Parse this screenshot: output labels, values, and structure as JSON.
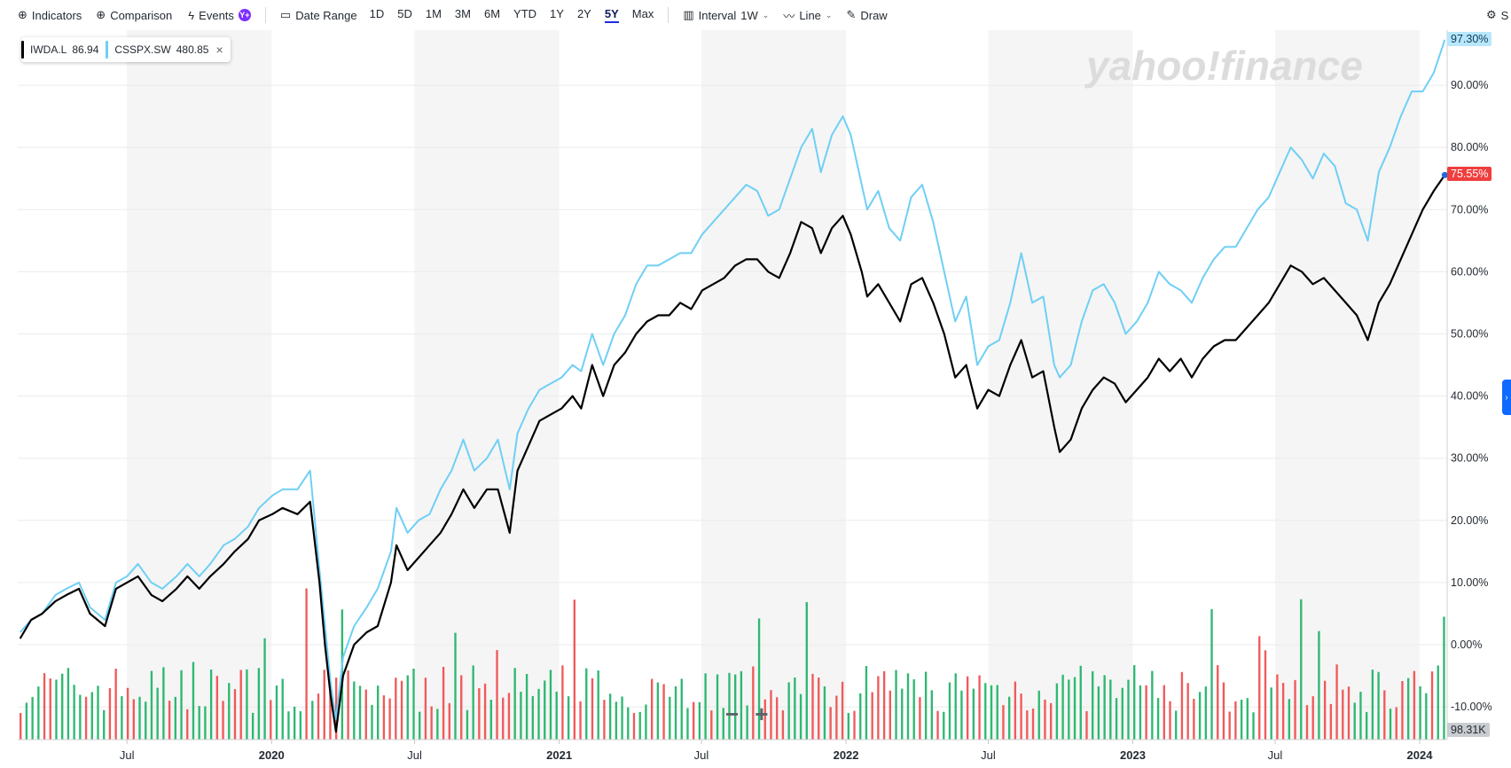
{
  "toolbar": {
    "indicators": "Indicators",
    "comparison": "Comparison",
    "events": "Events",
    "events_badge": "Y+",
    "date_range": "Date Range",
    "ranges": [
      "1D",
      "5D",
      "1M",
      "3M",
      "6M",
      "YTD",
      "1Y",
      "2Y",
      "5Y",
      "Max"
    ],
    "active_range": "5Y",
    "interval_label": "Interval",
    "interval_value": "1W",
    "line_label": "Line",
    "draw_label": "Draw",
    "settings_partial": "S"
  },
  "legend": [
    {
      "symbol": "IWDA.L",
      "value": "86.94",
      "color": "#000000"
    },
    {
      "symbol": "CSSPX.SW",
      "value": "480.85",
      "color": "#6fcff5",
      "closable": true
    }
  ],
  "watermark": "yahoo!finance",
  "tags": {
    "csspx_pct": "97.30%",
    "iwda_pct": "75.55%",
    "volume": "98.31K"
  },
  "colors": {
    "iwda": "#000000",
    "csspx": "#6fcff5",
    "vol_up": "#2eb872",
    "vol_down": "#f05a5a",
    "active_range": "#1e2ddb",
    "iwda_tag": "#f03e3e",
    "csspx_tag": "#b8e7fb"
  },
  "chart_data": {
    "type": "line",
    "title": "",
    "xlabel": "",
    "ylabel": "",
    "ylim": [
      -15,
      100
    ],
    "y_ticks": [
      "90.00%",
      "80.00%",
      "70.00%",
      "60.00%",
      "50.00%",
      "40.00%",
      "30.00%",
      "20.00%",
      "10.00%",
      "0.00%",
      "-10.00%"
    ],
    "x_ticks": [
      {
        "label": "Jul",
        "year": false
      },
      {
        "label": "2020",
        "year": true
      },
      {
        "label": "Jul",
        "year": false
      },
      {
        "label": "2021",
        "year": true
      },
      {
        "label": "Jul",
        "year": false
      },
      {
        "label": "2022",
        "year": true
      },
      {
        "label": "Jul",
        "year": false
      },
      {
        "label": "2023",
        "year": true
      },
      {
        "label": "Jul",
        "year": false
      },
      {
        "label": "2024",
        "year": true
      }
    ],
    "x_range": [
      "2019-02",
      "2024-02"
    ],
    "series": [
      {
        "name": "IWDA.L",
        "unit": "% change",
        "points": [
          [
            "2019-02-15",
            1
          ],
          [
            "2019-03-01",
            4
          ],
          [
            "2019-03-15",
            5
          ],
          [
            "2019-04-01",
            7
          ],
          [
            "2019-04-15",
            8
          ],
          [
            "2019-05-01",
            9
          ],
          [
            "2019-05-15",
            5
          ],
          [
            "2019-06-03",
            3
          ],
          [
            "2019-06-17",
            9
          ],
          [
            "2019-07-01",
            10
          ],
          [
            "2019-07-15",
            11
          ],
          [
            "2019-08-01",
            8
          ],
          [
            "2019-08-15",
            7
          ],
          [
            "2019-09-02",
            9
          ],
          [
            "2019-09-16",
            11
          ],
          [
            "2019-10-01",
            9
          ],
          [
            "2019-10-15",
            11
          ],
          [
            "2019-11-01",
            13
          ],
          [
            "2019-11-15",
            15
          ],
          [
            "2019-12-02",
            17
          ],
          [
            "2019-12-16",
            20
          ],
          [
            "2020-01-02",
            21
          ],
          [
            "2020-01-15",
            22
          ],
          [
            "2020-02-03",
            21
          ],
          [
            "2020-02-19",
            23
          ],
          [
            "2020-03-02",
            10
          ],
          [
            "2020-03-09",
            0
          ],
          [
            "2020-03-16",
            -8
          ],
          [
            "2020-03-23",
            -14
          ],
          [
            "2020-04-01",
            -5
          ],
          [
            "2020-04-15",
            0
          ],
          [
            "2020-05-01",
            2
          ],
          [
            "2020-05-15",
            3
          ],
          [
            "2020-06-01",
            10
          ],
          [
            "2020-06-08",
            16
          ],
          [
            "2020-06-22",
            12
          ],
          [
            "2020-07-06",
            14
          ],
          [
            "2020-07-20",
            16
          ],
          [
            "2020-08-03",
            18
          ],
          [
            "2020-08-17",
            21
          ],
          [
            "2020-09-01",
            25
          ],
          [
            "2020-09-15",
            22
          ],
          [
            "2020-10-01",
            25
          ],
          [
            "2020-10-15",
            25
          ],
          [
            "2020-10-30",
            18
          ],
          [
            "2020-11-09",
            28
          ],
          [
            "2020-11-23",
            32
          ],
          [
            "2020-12-07",
            36
          ],
          [
            "2020-12-21",
            37
          ],
          [
            "2021-01-04",
            38
          ],
          [
            "2021-01-18",
            40
          ],
          [
            "2021-01-29",
            38
          ],
          [
            "2021-02-12",
            45
          ],
          [
            "2021-02-26",
            40
          ],
          [
            "2021-03-12",
            45
          ],
          [
            "2021-03-26",
            47
          ],
          [
            "2021-04-09",
            50
          ],
          [
            "2021-04-23",
            52
          ],
          [
            "2021-05-07",
            53
          ],
          [
            "2021-05-21",
            53
          ],
          [
            "2021-06-04",
            55
          ],
          [
            "2021-06-18",
            54
          ],
          [
            "2021-07-02",
            57
          ],
          [
            "2021-07-16",
            58
          ],
          [
            "2021-07-30",
            59
          ],
          [
            "2021-08-13",
            61
          ],
          [
            "2021-08-27",
            62
          ],
          [
            "2021-09-10",
            62
          ],
          [
            "2021-09-24",
            60
          ],
          [
            "2021-10-08",
            59
          ],
          [
            "2021-10-22",
            63
          ],
          [
            "2021-11-05",
            68
          ],
          [
            "2021-11-19",
            67
          ],
          [
            "2021-11-30",
            63
          ],
          [
            "2021-12-14",
            67
          ],
          [
            "2021-12-28",
            69
          ],
          [
            "2022-01-07",
            66
          ],
          [
            "2022-01-21",
            60
          ],
          [
            "2022-01-28",
            56
          ],
          [
            "2022-02-11",
            58
          ],
          [
            "2022-02-25",
            55
          ],
          [
            "2022-03-11",
            52
          ],
          [
            "2022-03-25",
            58
          ],
          [
            "2022-04-08",
            59
          ],
          [
            "2022-04-22",
            55
          ],
          [
            "2022-05-06",
            50
          ],
          [
            "2022-05-20",
            43
          ],
          [
            "2022-06-03",
            45
          ],
          [
            "2022-06-17",
            38
          ],
          [
            "2022-07-01",
            41
          ],
          [
            "2022-07-15",
            40
          ],
          [
            "2022-07-29",
            45
          ],
          [
            "2022-08-12",
            49
          ],
          [
            "2022-08-26",
            43
          ],
          [
            "2022-09-09",
            44
          ],
          [
            "2022-09-23",
            35
          ],
          [
            "2022-09-30",
            31
          ],
          [
            "2022-10-14",
            33
          ],
          [
            "2022-10-28",
            38
          ],
          [
            "2022-11-11",
            41
          ],
          [
            "2022-11-25",
            43
          ],
          [
            "2022-12-09",
            42
          ],
          [
            "2022-12-23",
            39
          ],
          [
            "2023-01-06",
            41
          ],
          [
            "2023-01-20",
            43
          ],
          [
            "2023-02-03",
            46
          ],
          [
            "2023-02-17",
            44
          ],
          [
            "2023-03-03",
            46
          ],
          [
            "2023-03-17",
            43
          ],
          [
            "2023-03-31",
            46
          ],
          [
            "2023-04-14",
            48
          ],
          [
            "2023-04-28",
            49
          ],
          [
            "2023-05-12",
            49
          ],
          [
            "2023-05-26",
            51
          ],
          [
            "2023-06-09",
            53
          ],
          [
            "2023-06-23",
            55
          ],
          [
            "2023-07-07",
            58
          ],
          [
            "2023-07-21",
            61
          ],
          [
            "2023-08-04",
            60
          ],
          [
            "2023-08-18",
            58
          ],
          [
            "2023-09-01",
            59
          ],
          [
            "2023-09-15",
            57
          ],
          [
            "2023-09-29",
            55
          ],
          [
            "2023-10-13",
            53
          ],
          [
            "2023-10-27",
            49
          ],
          [
            "2023-11-10",
            55
          ],
          [
            "2023-11-24",
            58
          ],
          [
            "2023-12-08",
            62
          ],
          [
            "2023-12-22",
            66
          ],
          [
            "2024-01-05",
            70
          ],
          [
            "2024-01-19",
            73
          ],
          [
            "2024-02-02",
            75.55
          ]
        ]
      },
      {
        "name": "CSSPX.SW",
        "unit": "% change",
        "points": [
          [
            "2019-02-15",
            2
          ],
          [
            "2019-03-01",
            4
          ],
          [
            "2019-03-15",
            5
          ],
          [
            "2019-04-01",
            8
          ],
          [
            "2019-04-15",
            9
          ],
          [
            "2019-05-01",
            10
          ],
          [
            "2019-05-15",
            6
          ],
          [
            "2019-06-03",
            4
          ],
          [
            "2019-06-17",
            10
          ],
          [
            "2019-07-01",
            11
          ],
          [
            "2019-07-15",
            13
          ],
          [
            "2019-08-01",
            10
          ],
          [
            "2019-08-15",
            9
          ],
          [
            "2019-09-02",
            11
          ],
          [
            "2019-09-16",
            13
          ],
          [
            "2019-10-01",
            11
          ],
          [
            "2019-10-15",
            13
          ],
          [
            "2019-11-01",
            16
          ],
          [
            "2019-11-15",
            17
          ],
          [
            "2019-12-02",
            19
          ],
          [
            "2019-12-16",
            22
          ],
          [
            "2020-01-02",
            24
          ],
          [
            "2020-01-15",
            25
          ],
          [
            "2020-02-03",
            25
          ],
          [
            "2020-02-19",
            28
          ],
          [
            "2020-03-02",
            12
          ],
          [
            "2020-03-09",
            3
          ],
          [
            "2020-03-16",
            -6
          ],
          [
            "2020-03-23",
            -12
          ],
          [
            "2020-04-01",
            -2
          ],
          [
            "2020-04-15",
            3
          ],
          [
            "2020-05-01",
            6
          ],
          [
            "2020-05-15",
            9
          ],
          [
            "2020-06-01",
            15
          ],
          [
            "2020-06-08",
            22
          ],
          [
            "2020-06-22",
            18
          ],
          [
            "2020-07-06",
            20
          ],
          [
            "2020-07-20",
            21
          ],
          [
            "2020-08-03",
            25
          ],
          [
            "2020-08-17",
            28
          ],
          [
            "2020-09-01",
            33
          ],
          [
            "2020-09-15",
            28
          ],
          [
            "2020-10-01",
            30
          ],
          [
            "2020-10-15",
            33
          ],
          [
            "2020-10-30",
            25
          ],
          [
            "2020-11-09",
            34
          ],
          [
            "2020-11-23",
            38
          ],
          [
            "2020-12-07",
            41
          ],
          [
            "2020-12-21",
            42
          ],
          [
            "2021-01-04",
            43
          ],
          [
            "2021-01-18",
            45
          ],
          [
            "2021-01-29",
            44
          ],
          [
            "2021-02-12",
            50
          ],
          [
            "2021-02-26",
            45
          ],
          [
            "2021-03-12",
            50
          ],
          [
            "2021-03-26",
            53
          ],
          [
            "2021-04-09",
            58
          ],
          [
            "2021-04-23",
            61
          ],
          [
            "2021-05-07",
            61
          ],
          [
            "2021-05-21",
            62
          ],
          [
            "2021-06-04",
            63
          ],
          [
            "2021-06-18",
            63
          ],
          [
            "2021-07-02",
            66
          ],
          [
            "2021-07-16",
            68
          ],
          [
            "2021-07-30",
            70
          ],
          [
            "2021-08-13",
            72
          ],
          [
            "2021-08-27",
            74
          ],
          [
            "2021-09-10",
            73
          ],
          [
            "2021-09-24",
            69
          ],
          [
            "2021-10-08",
            70
          ],
          [
            "2021-10-22",
            75
          ],
          [
            "2021-11-05",
            80
          ],
          [
            "2021-11-19",
            83
          ],
          [
            "2021-11-30",
            76
          ],
          [
            "2021-12-14",
            82
          ],
          [
            "2021-12-28",
            85
          ],
          [
            "2022-01-07",
            82
          ],
          [
            "2022-01-21",
            74
          ],
          [
            "2022-01-28",
            70
          ],
          [
            "2022-02-11",
            73
          ],
          [
            "2022-02-25",
            67
          ],
          [
            "2022-03-11",
            65
          ],
          [
            "2022-03-25",
            72
          ],
          [
            "2022-04-08",
            74
          ],
          [
            "2022-04-22",
            68
          ],
          [
            "2022-05-06",
            60
          ],
          [
            "2022-05-20",
            52
          ],
          [
            "2022-06-03",
            56
          ],
          [
            "2022-06-17",
            45
          ],
          [
            "2022-07-01",
            48
          ],
          [
            "2022-07-15",
            49
          ],
          [
            "2022-07-29",
            55
          ],
          [
            "2022-08-12",
            63
          ],
          [
            "2022-08-26",
            55
          ],
          [
            "2022-09-09",
            56
          ],
          [
            "2022-09-23",
            45
          ],
          [
            "2022-09-30",
            43
          ],
          [
            "2022-10-14",
            45
          ],
          [
            "2022-10-28",
            52
          ],
          [
            "2022-11-11",
            57
          ],
          [
            "2022-11-25",
            58
          ],
          [
            "2022-12-09",
            55
          ],
          [
            "2022-12-23",
            50
          ],
          [
            "2023-01-06",
            52
          ],
          [
            "2023-01-20",
            55
          ],
          [
            "2023-02-03",
            60
          ],
          [
            "2023-02-17",
            58
          ],
          [
            "2023-03-03",
            57
          ],
          [
            "2023-03-17",
            55
          ],
          [
            "2023-03-31",
            59
          ],
          [
            "2023-04-14",
            62
          ],
          [
            "2023-04-28",
            64
          ],
          [
            "2023-05-12",
            64
          ],
          [
            "2023-05-26",
            67
          ],
          [
            "2023-06-09",
            70
          ],
          [
            "2023-06-23",
            72
          ],
          [
            "2023-07-07",
            76
          ],
          [
            "2023-07-21",
            80
          ],
          [
            "2023-08-04",
            78
          ],
          [
            "2023-08-18",
            75
          ],
          [
            "2023-09-01",
            79
          ],
          [
            "2023-09-15",
            77
          ],
          [
            "2023-09-29",
            71
          ],
          [
            "2023-10-13",
            70
          ],
          [
            "2023-10-27",
            65
          ],
          [
            "2023-11-10",
            76
          ],
          [
            "2023-11-24",
            80
          ],
          [
            "2023-12-08",
            85
          ],
          [
            "2023-12-22",
            89
          ],
          [
            "2024-01-05",
            89
          ],
          [
            "2024-01-19",
            92
          ],
          [
            "2024-02-02",
            97.3
          ]
        ]
      }
    ],
    "volume_pattern": {
      "count": 240,
      "max_label": "98.31K"
    }
  }
}
